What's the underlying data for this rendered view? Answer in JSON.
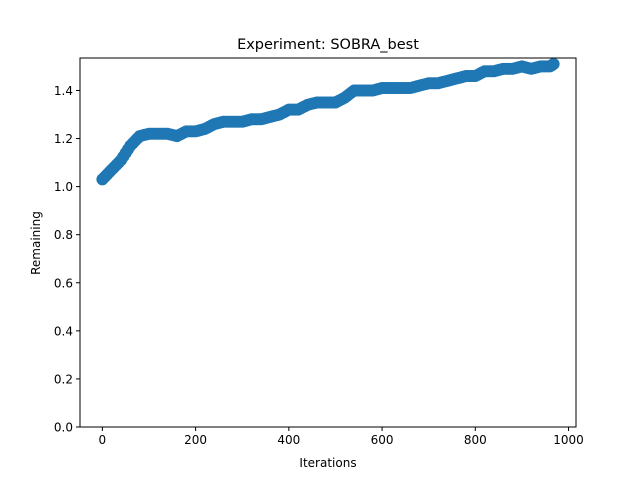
{
  "chart_data": {
    "type": "scatter",
    "title": "Experiment: SOBRA_best",
    "xlabel": "Iterations",
    "ylabel": "Remaining",
    "xlim": [
      -48,
      1016
    ],
    "ylim": [
      0,
      1.535
    ],
    "xticks": [
      0,
      200,
      400,
      600,
      800,
      1000
    ],
    "yticks": [
      0.0,
      0.2,
      0.4,
      0.6,
      0.8,
      1.0,
      1.2,
      1.4
    ],
    "xtick_labels": [
      "0",
      "200",
      "400",
      "600",
      "800",
      "1000"
    ],
    "ytick_labels": [
      "0.0",
      "0.2",
      "0.4",
      "0.6",
      "0.8",
      "1.0",
      "1.2",
      "1.4"
    ],
    "grid": false,
    "color": "#1f77b4",
    "series": [
      {
        "x": [
          0,
          20,
          40,
          60,
          80,
          100,
          120,
          140,
          160,
          180,
          200,
          220,
          240,
          260,
          280,
          300,
          320,
          340,
          360,
          380,
          400,
          420,
          440,
          460,
          480,
          500,
          520,
          540,
          560,
          580,
          600,
          620,
          640,
          660,
          680,
          700,
          720,
          740,
          760,
          780,
          800,
          820,
          840,
          860,
          880,
          900,
          920,
          940,
          960,
          968
        ],
        "y": [
          1.03,
          1.07,
          1.11,
          1.17,
          1.21,
          1.22,
          1.22,
          1.22,
          1.21,
          1.23,
          1.23,
          1.24,
          1.26,
          1.27,
          1.27,
          1.27,
          1.28,
          1.28,
          1.29,
          1.3,
          1.32,
          1.32,
          1.34,
          1.35,
          1.35,
          1.35,
          1.37,
          1.4,
          1.4,
          1.4,
          1.41,
          1.41,
          1.41,
          1.41,
          1.42,
          1.43,
          1.43,
          1.44,
          1.45,
          1.46,
          1.46,
          1.48,
          1.48,
          1.49,
          1.49,
          1.5,
          1.49,
          1.5,
          1.5,
          1.51
        ]
      }
    ]
  }
}
